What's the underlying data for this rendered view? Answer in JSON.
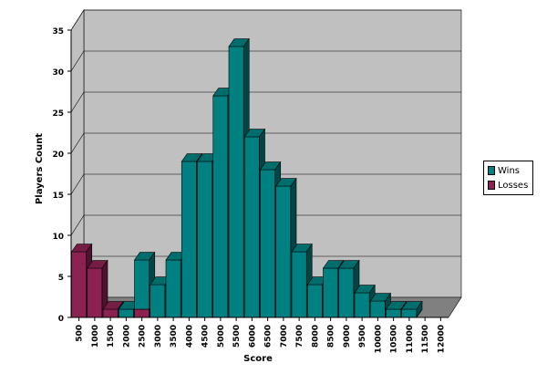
{
  "chart_data": {
    "type": "bar",
    "xlabel": "Score",
    "ylabel": "Players Count",
    "ylim": [
      0,
      35
    ],
    "y_ticks": [
      0,
      5,
      10,
      15,
      20,
      25,
      30,
      35
    ],
    "grid": true,
    "legend_position": "right",
    "categories": [
      "500",
      "1000",
      "1500",
      "2000",
      "2500",
      "3000",
      "3500",
      "4000",
      "4500",
      "5000",
      "5500",
      "6000",
      "6500",
      "7000",
      "7500",
      "8000",
      "8500",
      "9000",
      "9500",
      "10000",
      "10500",
      "11000",
      "11500",
      "12000"
    ],
    "series": [
      {
        "name": "Wins",
        "color": "#008080",
        "values": [
          0,
          0,
          0,
          1,
          6,
          4,
          7,
          19,
          19,
          27,
          33,
          22,
          18,
          16,
          8,
          4,
          6,
          6,
          3,
          2,
          1,
          1,
          0,
          0
        ]
      },
      {
        "name": "Losses",
        "color": "#8B2252",
        "values": [
          8,
          6,
          1,
          0,
          1,
          0,
          0,
          0,
          0,
          0,
          0,
          0,
          0,
          0,
          0,
          0,
          0,
          0,
          0,
          0,
          0,
          0,
          0,
          0
        ]
      }
    ]
  }
}
